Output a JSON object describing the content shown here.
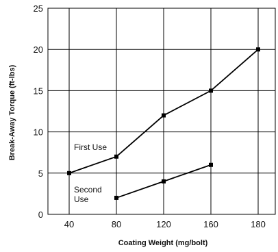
{
  "chart_data": {
    "type": "line",
    "xlabel": "Coating Weight (mg/bolt)",
    "ylabel": "Break-Away Torque (ft-lbs)",
    "x_ticks": [
      40,
      80,
      120,
      160,
      180
    ],
    "y_ticks": [
      0,
      5,
      10,
      15,
      20,
      25
    ],
    "ylim": [
      0,
      25
    ],
    "grid": true,
    "legend": "none",
    "series": [
      {
        "name": "First Use",
        "label_lines": [
          "First Use"
        ],
        "x": [
          40,
          80,
          120,
          160,
          180
        ],
        "y": [
          5,
          7,
          12,
          15,
          20
        ]
      },
      {
        "name": "Second Use",
        "label_lines": [
          "Second",
          "Use"
        ],
        "x": [
          80,
          120,
          160
        ],
        "y": [
          2,
          4,
          6
        ]
      }
    ],
    "colors": {
      "line": "#000000",
      "grid": "#000000",
      "background": "#ffffff"
    }
  }
}
